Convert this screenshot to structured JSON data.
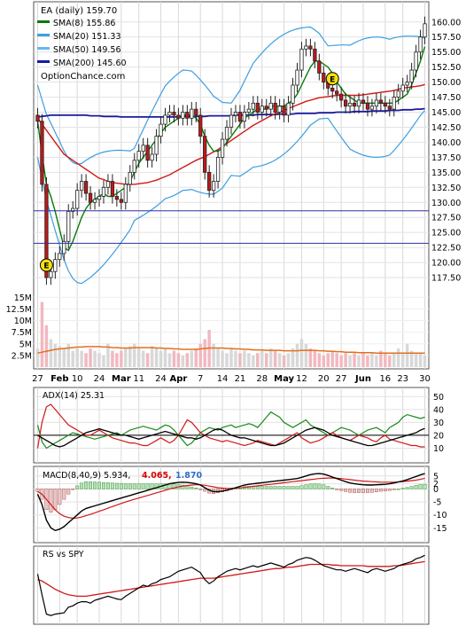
{
  "chart_data": {
    "type": "line",
    "title": "EA (daily) 159.70",
    "source": "OptionChance.com",
    "x_ticks": [
      "27",
      "Feb",
      "10",
      "24",
      "Mar",
      "11",
      "24",
      "Apr",
      "7",
      "14",
      "21",
      "28",
      "May",
      "12",
      "20",
      "27",
      "Jun",
      "16",
      "23",
      "30"
    ],
    "bold_ticks": [
      "Feb",
      "Mar",
      "Apr",
      "May",
      "Jun"
    ],
    "price_panel": {
      "ylim": [
        115,
        161
      ],
      "y_ticks": [
        117.5,
        120.0,
        122.5,
        125.0,
        127.5,
        130.0,
        132.5,
        135.0,
        137.5,
        140.0,
        142.5,
        145.0,
        147.5,
        150.0,
        152.5,
        155.0,
        157.5,
        160.0
      ],
      "hlines": [
        128.6,
        123.2
      ],
      "earnings_markers": [
        {
          "label": "E",
          "index": 2
        },
        {
          "label": "E",
          "index": 67
        }
      ],
      "legend": [
        {
          "label": "SMA(8) 155.86",
          "color": "#0a7a0a"
        },
        {
          "label": "SMA(20) 151.33",
          "color": "#3c9ee0"
        },
        {
          "label": "SMA(50) 149.56",
          "color": "#66b8ee"
        },
        {
          "label": "SMA(200) 145.60",
          "color": "#1a1aa0"
        }
      ],
      "close": [
        143.5,
        133.0,
        117.5,
        118.5,
        120.5,
        121.5,
        123.5,
        128.5,
        129.0,
        132.0,
        133.5,
        131.5,
        130.0,
        130.5,
        131.0,
        132.5,
        133.5,
        131.0,
        130.5,
        130.0,
        133.0,
        135.0,
        137.0,
        138.5,
        139.5,
        137.0,
        138.0,
        141.0,
        143.0,
        144.5,
        145.0,
        144.5,
        144.0,
        145.0,
        144.0,
        145.5,
        144.5,
        141.0,
        135.0,
        132.0,
        133.5,
        137.5,
        140.5,
        142.5,
        144.5,
        145.0,
        143.5,
        145.0,
        145.5,
        146.5,
        145.0,
        146.0,
        145.5,
        146.5,
        145.0,
        146.0,
        144.5,
        146.5,
        149.5,
        152.0,
        155.5,
        156.0,
        155.5,
        153.5,
        151.5,
        150.0,
        149.0,
        148.5,
        148.0,
        147.0,
        146.0,
        146.5,
        146.0,
        147.0,
        146.5,
        145.5,
        146.0,
        147.0,
        146.5,
        146.0,
        145.5,
        147.5,
        148.5,
        149.5,
        150.0,
        152.0,
        155.0,
        157.5,
        159.7
      ],
      "sma8": [
        143.5,
        138.0,
        133.0,
        131.0,
        128.5,
        125.5,
        122.5,
        122.0,
        123.5,
        125.5,
        127.5,
        129.0,
        130.0,
        130.5,
        131.0,
        131.5,
        131.0,
        131.0,
        131.5,
        132.0,
        132.5,
        133.5,
        135.0,
        136.5,
        137.5,
        138.5,
        139.5,
        140.5,
        141.5,
        142.5,
        143.0,
        143.5,
        144.0,
        144.5,
        144.5,
        144.5,
        144.0,
        143.0,
        141.0,
        139.5,
        138.5,
        138.5,
        139.0,
        140.0,
        141.0,
        142.0,
        143.0,
        144.0,
        144.5,
        145.0,
        145.5,
        145.5,
        145.5,
        146.0,
        146.0,
        146.0,
        146.0,
        146.5,
        147.0,
        148.0,
        149.5,
        151.0,
        152.5,
        153.5,
        153.5,
        153.0,
        152.5,
        151.5,
        150.0,
        149.0,
        148.0,
        147.5,
        147.0,
        146.5,
        146.5,
        146.5,
        146.5,
        146.5,
        146.5,
        146.5,
        146.5,
        146.5,
        147.0,
        147.5,
        148.0,
        149.5,
        151.5,
        153.5,
        155.9
      ],
      "sma20": [
        143.5,
        140.5,
        137.5,
        135.5,
        133.5,
        131.5,
        129.5,
        128.0,
        127.0,
        126.5,
        126.5,
        127.0,
        127.5,
        128.0,
        128.5,
        129.0,
        129.5,
        130.0,
        130.5,
        131.0,
        131.5,
        132.0,
        133.0,
        134.0,
        135.0,
        136.0,
        137.0,
        138.0,
        139.0,
        140.0,
        140.5,
        141.0,
        141.5,
        142.0,
        142.0,
        142.0,
        141.5,
        141.0,
        140.5,
        140.0,
        139.5,
        139.5,
        139.5,
        140.0,
        140.5,
        141.0,
        141.5,
        142.5,
        143.5,
        144.5,
        145.0,
        145.5,
        146.0,
        146.5,
        147.0,
        147.5,
        148.0,
        148.5,
        149.0,
        149.5,
        150.0,
        150.5,
        151.0,
        151.0,
        151.0,
        150.5,
        150.0,
        149.5,
        149.0,
        148.5,
        148.0,
        147.5,
        147.5,
        147.5,
        147.5,
        147.5,
        147.5,
        147.5,
        147.5,
        147.5,
        147.5,
        148.0,
        148.5,
        149.0,
        149.5,
        150.0,
        150.5,
        151.0,
        151.3
      ],
      "sma50": [
        144.0,
        143.0,
        142.0,
        141.0,
        140.0,
        139.0,
        138.0,
        137.5,
        137.0,
        136.5,
        136.0,
        135.5,
        135.0,
        134.5,
        134.0,
        133.8,
        133.5,
        133.3,
        133.2,
        133.1,
        133.0,
        133.0,
        133.0,
        133.1,
        133.2,
        133.3,
        133.5,
        133.7,
        134.0,
        134.3,
        134.6,
        135.0,
        135.4,
        135.8,
        136.2,
        136.6,
        137.0,
        137.3,
        137.6,
        138.0,
        138.4,
        138.8,
        139.3,
        139.8,
        140.3,
        140.8,
        141.3,
        141.8,
        142.3,
        142.8,
        143.2,
        143.6,
        144.0,
        144.4,
        144.7,
        145.0,
        145.3,
        145.6,
        145.9,
        146.2,
        146.5,
        146.8,
        147.0,
        147.2,
        147.4,
        147.5,
        147.6,
        147.7,
        147.8,
        147.8,
        147.8,
        147.8,
        147.8,
        147.8,
        147.9,
        148.0,
        148.1,
        148.2,
        148.3,
        148.4,
        148.5,
        148.6,
        148.8,
        149.0,
        149.1,
        149.2,
        149.3,
        149.4,
        149.6
      ],
      "sma200": [
        144.2,
        144.3,
        144.4,
        144.5,
        144.5,
        144.5,
        144.5,
        144.5,
        144.5,
        144.5,
        144.5,
        144.5,
        144.4,
        144.4,
        144.4,
        144.3,
        144.3,
        144.3,
        144.3,
        144.2,
        144.2,
        144.2,
        144.2,
        144.2,
        144.2,
        144.2,
        144.2,
        144.2,
        144.2,
        144.2,
        144.2,
        144.2,
        144.2,
        144.3,
        144.3,
        144.3,
        144.3,
        144.3,
        144.3,
        144.4,
        144.4,
        144.4,
        144.4,
        144.4,
        144.4,
        144.5,
        144.5,
        144.5,
        144.5,
        144.5,
        144.6,
        144.6,
        144.6,
        144.6,
        144.6,
        144.7,
        144.7,
        144.7,
        144.7,
        144.8,
        144.8,
        144.8,
        144.8,
        144.8,
        144.9,
        144.9,
        144.9,
        144.9,
        145.0,
        145.0,
        145.0,
        145.0,
        145.1,
        145.1,
        145.1,
        145.1,
        145.2,
        145.2,
        145.2,
        145.2,
        145.3,
        145.3,
        145.3,
        145.4,
        145.4,
        145.4,
        145.5,
        145.5,
        145.6
      ]
    },
    "volume_panel": {
      "ylim": [
        0,
        16000000
      ],
      "y_ticks": [
        {
          "v": 2500000,
          "label": "2.5M"
        },
        {
          "v": 5000000,
          "label": "5M"
        },
        {
          "v": 7500000,
          "label": "7.5M"
        },
        {
          "v": 10000000,
          "label": "10M"
        },
        {
          "v": 12500000,
          "label": "12.5M"
        },
        {
          "v": 15000000,
          "label": "15M"
        }
      ],
      "volume": [
        4.0,
        14.0,
        9.0,
        6.0,
        5.0,
        4.5,
        4.0,
        5.0,
        3.5,
        4.0,
        3.5,
        3.0,
        4.0,
        3.5,
        3.0,
        2.5,
        5.0,
        3.5,
        3.0,
        3.5,
        4.0,
        4.5,
        5.0,
        4.0,
        3.5,
        3.0,
        4.5,
        4.0,
        3.5,
        4.0,
        3.0,
        3.5,
        3.0,
        2.5,
        3.0,
        3.5,
        4.0,
        5.0,
        6.0,
        8.0,
        5.0,
        4.0,
        3.5,
        3.0,
        4.0,
        3.5,
        3.0,
        3.5,
        3.0,
        2.5,
        3.0,
        3.5,
        3.0,
        4.0,
        3.5,
        3.0,
        2.5,
        3.0,
        4.0,
        5.0,
        6.0,
        5.0,
        4.0,
        3.5,
        3.0,
        2.5,
        3.0,
        3.5,
        3.0,
        2.5,
        3.0,
        2.5,
        3.0,
        2.5,
        3.0,
        2.5,
        3.0,
        2.5,
        3.5,
        3.0,
        2.5,
        3.0,
        4.0,
        3.0,
        5.0,
        3.5,
        3.0,
        3.0,
        2.5
      ],
      "volume_avg": [
        3.0,
        3.2,
        3.4,
        3.6,
        3.8,
        3.9,
        4.0,
        4.1,
        4.2,
        4.3,
        4.3,
        4.4,
        4.4,
        4.4,
        4.4,
        4.3,
        4.3,
        4.2,
        4.2,
        4.1,
        4.1,
        4.1,
        4.2,
        4.2,
        4.2,
        4.2,
        4.2,
        4.1,
        4.1,
        4.0,
        4.0,
        3.9,
        3.9,
        3.8,
        3.8,
        3.8,
        3.8,
        3.9,
        4.0,
        4.1,
        4.1,
        4.1,
        4.1,
        4.0,
        4.0,
        3.9,
        3.9,
        3.8,
        3.8,
        3.7,
        3.7,
        3.7,
        3.6,
        3.6,
        3.6,
        3.6,
        3.5,
        3.5,
        3.5,
        3.5,
        3.6,
        3.6,
        3.6,
        3.6,
        3.5,
        3.5,
        3.4,
        3.4,
        3.3,
        3.3,
        3.2,
        3.2,
        3.2,
        3.1,
        3.1,
        3.1,
        3.1,
        3.0,
        3.0,
        3.0,
        3.0,
        3.0,
        3.0,
        3.0,
        3.0,
        3.0,
        3.0,
        3.0,
        3.0
      ]
    },
    "adx_panel": {
      "label": "ADX(14) 25.31",
      "ylim": [
        0,
        55
      ],
      "y_ticks": [
        10,
        20,
        30,
        40,
        50
      ],
      "hline": 20,
      "adx": [
        20,
        18,
        16,
        14,
        12,
        11,
        12,
        14,
        16,
        18,
        20,
        22,
        23,
        24,
        25,
        24,
        23,
        22,
        21,
        20,
        20,
        19,
        18,
        17,
        18,
        19,
        20,
        21,
        22,
        23,
        22,
        21,
        20,
        19,
        18,
        18,
        17,
        18,
        20,
        22,
        24,
        25,
        24,
        22,
        20,
        19,
        18,
        18,
        17,
        16,
        15,
        14,
        13,
        12,
        12,
        13,
        14,
        16,
        18,
        20,
        22,
        24,
        25,
        26,
        25,
        24,
        22,
        20,
        19,
        18,
        17,
        16,
        15,
        14,
        13,
        12,
        12,
        13,
        14,
        15,
        16,
        17,
        18,
        19,
        20,
        21,
        22,
        24,
        25.3
      ],
      "plus_di": [
        28,
        15,
        10,
        12,
        14,
        16,
        18,
        20,
        22,
        21,
        20,
        19,
        18,
        17,
        18,
        19,
        20,
        21,
        22,
        20,
        22,
        24,
        25,
        26,
        27,
        26,
        25,
        24,
        26,
        28,
        27,
        24,
        20,
        16,
        12,
        14,
        18,
        22,
        24,
        26,
        25,
        24,
        26,
        27,
        28,
        26,
        27,
        28,
        29,
        28,
        26,
        30,
        34,
        38,
        36,
        34,
        30,
        28,
        26,
        28,
        30,
        32,
        28,
        26,
        24,
        22,
        20,
        22,
        24,
        26,
        25,
        24,
        22,
        20,
        22,
        24,
        25,
        26,
        24,
        22,
        26,
        28,
        30,
        34,
        36,
        35,
        34,
        33,
        34
      ],
      "minus_di": [
        10,
        30,
        42,
        44,
        40,
        36,
        32,
        28,
        26,
        24,
        22,
        20,
        20,
        22,
        24,
        22,
        20,
        18,
        17,
        16,
        15,
        14,
        14,
        13,
        12,
        12,
        14,
        16,
        18,
        16,
        14,
        16,
        20,
        26,
        32,
        30,
        26,
        22,
        20,
        18,
        17,
        16,
        15,
        16,
        15,
        14,
        13,
        12,
        13,
        14,
        16,
        15,
        14,
        13,
        12,
        14,
        16,
        18,
        20,
        22,
        18,
        16,
        14,
        15,
        16,
        18,
        20,
        22,
        20,
        18,
        17,
        16,
        18,
        20,
        19,
        18,
        16,
        15,
        18,
        20,
        17,
        16,
        15,
        14,
        13,
        12,
        12,
        11,
        11
      ]
    },
    "macd_panel": {
      "label": "MACD(8,40,9) 5.934,",
      "signal_label": "4.065,",
      "hist_label": "1.870",
      "ylim": [
        -20,
        8
      ],
      "y_ticks": [
        {
          "v": 5,
          "label": "5"
        },
        {
          "v": 2,
          "label": "2"
        },
        {
          "v": 0,
          "label": "0"
        },
        {
          "v": -5,
          "label": "-5"
        },
        {
          "v": -10,
          "label": "-10"
        },
        {
          "v": -15,
          "label": "-15"
        }
      ],
      "macd": [
        -2,
        -6,
        -12,
        -15,
        -16,
        -15.5,
        -14.5,
        -13,
        -11.5,
        -10,
        -8.5,
        -7.5,
        -7,
        -6.5,
        -6,
        -5.5,
        -5,
        -4.5,
        -4,
        -3.5,
        -3,
        -2.5,
        -2,
        -1.5,
        -1,
        -0.5,
        0,
        0.5,
        1,
        1.5,
        2,
        2.3,
        2.5,
        2.6,
        2.5,
        2.3,
        2,
        1.5,
        0.5,
        -0.5,
        -1,
        -1,
        -0.8,
        -0.5,
        0,
        0.5,
        1,
        1.5,
        1.8,
        2,
        2.2,
        2.4,
        2.6,
        2.8,
        3,
        3.2,
        3.4,
        3.6,
        3.8,
        4,
        4.5,
        5,
        5.5,
        5.8,
        5.9,
        5.7,
        5.2,
        4.6,
        4,
        3.4,
        2.8,
        2.3,
        2,
        1.8,
        1.6,
        1.5,
        1.5,
        1.6,
        1.7,
        1.8,
        2,
        2.3,
        2.7,
        3.1,
        3.6,
        4.2,
        4.8,
        5.4,
        5.9
      ],
      "signal": [
        -1,
        -2,
        -4,
        -6,
        -8,
        -9.5,
        -10.5,
        -11,
        -11.3,
        -11.2,
        -10.8,
        -10.3,
        -9.8,
        -9.2,
        -8.6,
        -8,
        -7.4,
        -6.8,
        -6.2,
        -5.6,
        -5,
        -4.5,
        -4,
        -3.5,
        -3,
        -2.5,
        -2,
        -1.5,
        -1,
        -0.5,
        0,
        0.4,
        0.8,
        1.1,
        1.3,
        1.5,
        1.6,
        1.6,
        1.4,
        1.1,
        0.8,
        0.5,
        0.3,
        0.2,
        0.2,
        0.3,
        0.4,
        0.6,
        0.8,
        1,
        1.2,
        1.4,
        1.6,
        1.8,
        2,
        2.2,
        2.4,
        2.6,
        2.8,
        3,
        3.2,
        3.4,
        3.6,
        3.8,
        4,
        4.1,
        4.2,
        4.2,
        4.1,
        4,
        3.8,
        3.6,
        3.4,
        3.2,
        3,
        2.9,
        2.8,
        2.7,
        2.6,
        2.6,
        2.6,
        2.6,
        2.7,
        2.8,
        3,
        3.2,
        3.4,
        3.7,
        4.1
      ]
    },
    "rs_panel": {
      "label": "RS vs SPY",
      "ylim": [
        0,
        100
      ],
      "rs": [
        70,
        40,
        12,
        10,
        12,
        13,
        14,
        22,
        24,
        28,
        30,
        30,
        28,
        32,
        34,
        36,
        38,
        36,
        34,
        33,
        38,
        42,
        46,
        50,
        54,
        52,
        56,
        58,
        62,
        64,
        66,
        70,
        74,
        76,
        78,
        80,
        76,
        72,
        62,
        56,
        60,
        66,
        70,
        74,
        76,
        78,
        76,
        78,
        80,
        82,
        80,
        82,
        84,
        86,
        84,
        82,
        80,
        84,
        86,
        90,
        92,
        94,
        93,
        90,
        86,
        82,
        80,
        78,
        76,
        76,
        74,
        76,
        78,
        76,
        74,
        72,
        76,
        78,
        76,
        74,
        76,
        78,
        82,
        84,
        86,
        88,
        92,
        94,
        97
      ],
      "rs_ma": [
        62,
        60,
        56,
        52,
        48,
        45,
        42,
        40,
        39,
        38,
        38,
        38,
        39,
        40,
        41,
        42,
        43,
        44,
        45,
        46,
        47,
        48,
        49,
        50,
        51,
        52,
        53,
        54,
        55,
        56,
        57,
        58,
        59,
        60,
        61,
        62,
        63,
        64,
        64,
        64,
        64,
        65,
        66,
        67,
        68,
        69,
        70,
        71,
        72,
        73,
        74,
        75,
        76,
        77,
        78,
        78,
        79,
        80,
        80,
        81,
        82,
        83,
        84,
        84,
        84,
        84,
        84,
        83,
        83,
        82,
        82,
        82,
        82,
        82,
        82,
        81,
        81,
        81,
        81,
        81,
        81,
        82,
        82,
        83,
        84,
        85,
        86,
        87,
        88
      ]
    }
  }
}
